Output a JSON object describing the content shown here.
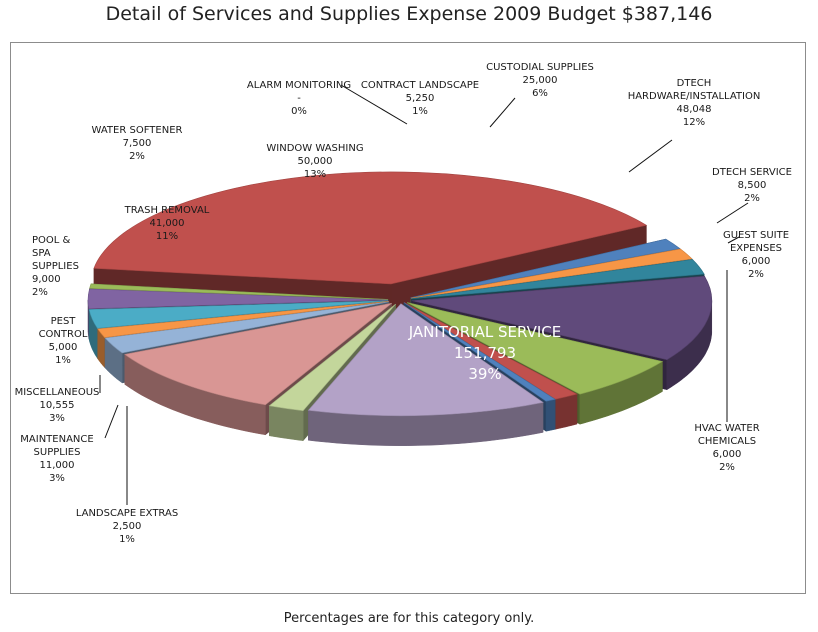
{
  "title": "Detail of Services and Supplies Expense 2009 Budget $387,146",
  "footnote": "Percentages are for this category only.",
  "chart_data": {
    "type": "pie",
    "style": "3d-exploded",
    "title": "Detail of Services and Supplies Expense 2009 Budget $387,146",
    "slices": [
      {
        "key": "janitorial",
        "label": "JANITORIAL SERVICE",
        "value": 151793,
        "value_text": "151,793",
        "percent": "39%",
        "color": "#c0504d"
      },
      {
        "key": "hvac",
        "label": "HVAC WATER CHEMICALS",
        "value": 6000,
        "value_text": "6,000",
        "percent": "2%",
        "color": "#4f81bd"
      },
      {
        "key": "guest",
        "label": "GUEST SUITE EXPENSES",
        "value": 6000,
        "value_text": "6,000",
        "percent": "2%",
        "color": "#f79646"
      },
      {
        "key": "dtech_service",
        "label": "DTECH SERVICE",
        "value": 8500,
        "value_text": "8,500",
        "percent": "2%",
        "color": "#31859c"
      },
      {
        "key": "dtech_hw",
        "label": "DTECH HARDWARE/INSTALLATION",
        "value": 48048,
        "value_text": "48,048",
        "percent": "12%",
        "color": "#604a7b"
      },
      {
        "key": "custodial",
        "label": "CUSTODIAL SUPPLIES",
        "value": 25000,
        "value_text": "25,000",
        "percent": "6%",
        "color": "#9bbb59"
      },
      {
        "key": "contract",
        "label": "CONTRACT LANDSCAPE",
        "value": 5250,
        "value_text": "5,250",
        "percent": "1%",
        "color": "#c0504d"
      },
      {
        "key": "alarm",
        "label": "ALARM MONITORING",
        "value": 0,
        "value_text": "-",
        "percent": "0%",
        "color": "#4f81bd"
      },
      {
        "key": "window",
        "label": "WINDOW WASHING",
        "value": 50000,
        "value_text": "50,000",
        "percent": "13%",
        "color": "#b3a2c7"
      },
      {
        "key": "softener",
        "label": "WATER SOFTENER",
        "value": 7500,
        "value_text": "7,500",
        "percent": "2%",
        "color": "#c3d69b"
      },
      {
        "key": "trash",
        "label": "TRASH REMOVAL",
        "value": 41000,
        "value_text": "41,000",
        "percent": "11%",
        "color": "#d99694"
      },
      {
        "key": "pool",
        "label": "POOL & SPA SUPPLIES",
        "value": 9000,
        "value_text": "9,000",
        "percent": "2%",
        "color": "#95b3d7"
      },
      {
        "key": "pest",
        "label": "PEST CONTROL",
        "value": 5000,
        "value_text": "5,000",
        "percent": "1%",
        "color": "#f79646"
      },
      {
        "key": "misc",
        "label": "MISCELLANEOUS",
        "value": 10555,
        "value_text": "10,555",
        "percent": "3%",
        "color": "#4bacc6"
      },
      {
        "key": "maint",
        "label": "MAINTENANCE SUPPLIES",
        "value": 11000,
        "value_text": "11,000",
        "percent": "3%",
        "color": "#8064a2"
      },
      {
        "key": "landscape_extras",
        "label": "LANDSCAPE EXTRAS",
        "value": 2500,
        "value_text": "2,500",
        "percent": "1%",
        "color": "#9bbb59"
      }
    ]
  }
}
